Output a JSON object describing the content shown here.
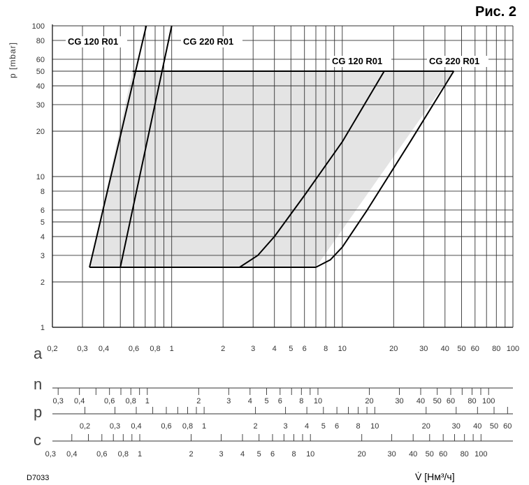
{
  "chart_data": {
    "type": "line",
    "title": "Рис. 2",
    "ylabel": "p [mbar]",
    "xlabel": "V̇ [Нм³/ч]",
    "code": "D7033",
    "x_scale": "log",
    "y_scale": "log",
    "xlim": [
      0.2,
      100
    ],
    "ylim": [
      1,
      100
    ],
    "grid": true,
    "y_ticks": [
      "1",
      "2",
      "3",
      "4",
      "5",
      "6",
      "8",
      "10",
      "20",
      "30",
      "40",
      "50",
      "60",
      "80",
      "100"
    ],
    "x_scales": [
      {
        "name": "a",
        "ticks": [
          {
            "v": 0.2,
            "t": "0,2"
          },
          {
            "v": 0.3,
            "t": "0,3"
          },
          {
            "v": 0.4,
            "t": "0,4"
          },
          {
            "v": 0.6,
            "t": "0,6"
          },
          {
            "v": 0.8,
            "t": "0,8"
          },
          {
            "v": 1,
            "t": "1"
          },
          {
            "v": 2,
            "t": "2"
          },
          {
            "v": 3,
            "t": "3"
          },
          {
            "v": 4,
            "t": "4"
          },
          {
            "v": 5,
            "t": "5"
          },
          {
            "v": 6,
            "t": "6"
          },
          {
            "v": 8,
            "t": "8"
          },
          {
            "v": 10,
            "t": "10"
          },
          {
            "v": 20,
            "t": "20"
          },
          {
            "v": 30,
            "t": "30"
          },
          {
            "v": 40,
            "t": "40"
          },
          {
            "v": 50,
            "t": "50"
          },
          {
            "v": 60,
            "t": "60"
          },
          {
            "v": 80,
            "t": "80"
          },
          {
            "v": 100,
            "t": "100"
          }
        ]
      },
      {
        "name": "n",
        "ticks": [
          {
            "v": 0.3,
            "t": "0,3"
          },
          {
            "v": 0.4,
            "t": "0,4"
          },
          {
            "v": 0.6,
            "t": "0,6"
          },
          {
            "v": 0.8,
            "t": "0,8"
          },
          {
            "v": 1,
            "t": "1"
          },
          {
            "v": 2,
            "t": "2"
          },
          {
            "v": 3,
            "t": "3"
          },
          {
            "v": 4,
            "t": "4"
          },
          {
            "v": 5,
            "t": "5"
          },
          {
            "v": 6,
            "t": "6"
          },
          {
            "v": 8,
            "t": "8"
          },
          {
            "v": 10,
            "t": "10"
          },
          {
            "v": 20,
            "t": "20"
          },
          {
            "v": 30,
            "t": "30"
          },
          {
            "v": 40,
            "t": "40"
          },
          {
            "v": 50,
            "t": "50"
          },
          {
            "v": 60,
            "t": "60"
          },
          {
            "v": 80,
            "t": "80"
          },
          {
            "v": 100,
            "t": "100"
          }
        ]
      },
      {
        "name": "p",
        "ticks": [
          {
            "v": 0.2,
            "t": "0,2"
          },
          {
            "v": 0.3,
            "t": "0,3"
          },
          {
            "v": 0.4,
            "t": "0,4"
          },
          {
            "v": 0.6,
            "t": "0,6"
          },
          {
            "v": 0.8,
            "t": "0,8"
          },
          {
            "v": 1,
            "t": "1"
          },
          {
            "v": 2,
            "t": "2"
          },
          {
            "v": 3,
            "t": "3"
          },
          {
            "v": 4,
            "t": "4"
          },
          {
            "v": 5,
            "t": "5"
          },
          {
            "v": 6,
            "t": "6"
          },
          {
            "v": 8,
            "t": "8"
          },
          {
            "v": 10,
            "t": "10"
          },
          {
            "v": 20,
            "t": "20"
          },
          {
            "v": 30,
            "t": "30"
          },
          {
            "v": 40,
            "t": "40"
          },
          {
            "v": 50,
            "t": "50"
          },
          {
            "v": 60,
            "t": "60"
          }
        ]
      },
      {
        "name": "c",
        "ticks": [
          {
            "v": 0.3,
            "t": "0,3"
          },
          {
            "v": 0.4,
            "t": "0,4"
          },
          {
            "v": 0.6,
            "t": "0,6"
          },
          {
            "v": 0.8,
            "t": "0,8"
          },
          {
            "v": 1,
            "t": "1"
          },
          {
            "v": 2,
            "t": "2"
          },
          {
            "v": 3,
            "t": "3"
          },
          {
            "v": 4,
            "t": "4"
          },
          {
            "v": 5,
            "t": "5"
          },
          {
            "v": 6,
            "t": "6"
          },
          {
            "v": 8,
            "t": "8"
          },
          {
            "v": 10,
            "t": "10"
          },
          {
            "v": 20,
            "t": "20"
          },
          {
            "v": 30,
            "t": "30"
          },
          {
            "v": 40,
            "t": "40"
          },
          {
            "v": 50,
            "t": "50"
          },
          {
            "v": 60,
            "t": "60"
          },
          {
            "v": 80,
            "t": "80"
          },
          {
            "v": 100,
            "t": "100"
          }
        ]
      }
    ],
    "series": [
      {
        "name": "CG 120 R01",
        "x": [
          0.33,
          0.71
        ],
        "y": [
          2.5,
          100
        ]
      },
      {
        "name": "CG 220 R01",
        "x": [
          0.5,
          1.0
        ],
        "y": [
          2.5,
          100
        ]
      },
      {
        "name": "CG 120 R01",
        "x": [
          2.5,
          3.2,
          4.0,
          6.0,
          10.0,
          17.6
        ],
        "y": [
          2.5,
          3.0,
          4.0,
          7.5,
          17.0,
          50.0
        ]
      },
      {
        "name": "CG 220 R01",
        "x": [
          7.0,
          8.5,
          10.0,
          14.0,
          25.0,
          45.0
        ],
        "y": [
          2.5,
          2.8,
          3.4,
          6.0,
          17.0,
          50.0
        ]
      }
    ],
    "operating_range": {
      "x": [
        0.59,
        45.0,
        7.0,
        0.33
      ],
      "y": [
        50,
        50,
        2.5,
        2.5
      ]
    },
    "colors": {
      "fill": "#e4e4e4",
      "grid": "#333333",
      "curve": "#000000"
    }
  }
}
